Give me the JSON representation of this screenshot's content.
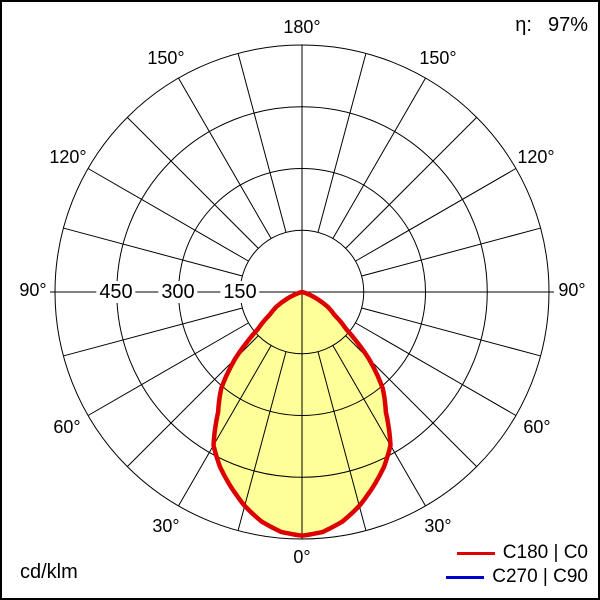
{
  "header": {
    "eta_label": "η:",
    "eta_value": "97%"
  },
  "unit_label": "cd/klm",
  "legend": {
    "items": [
      {
        "label": "C180 | C0",
        "color": "#dd0000"
      },
      {
        "label": "C270 | C90",
        "color": "#0000cc"
      }
    ]
  },
  "polar": {
    "angle_labels": {
      "t180": "180°",
      "l150": "150°",
      "r150": "150°",
      "l120": "120°",
      "r120": "120°",
      "l90": "90°",
      "r90": "90°",
      "l60": "60°",
      "r60": "60°",
      "l30": "30°",
      "r30": "30°",
      "b0": "0°"
    },
    "ring_labels": {
      "r1": "150",
      "r2": "300",
      "r3": "450"
    }
  },
  "chart_data": {
    "type": "line",
    "subtype": "polar-luminous-intensity-distribution",
    "title": "Luminous intensity distribution curve",
    "unit": "cd/klm",
    "efficiency_percent": 97,
    "angle_label_step_deg": 30,
    "grid_angle_step_deg": 15,
    "angle_labels": [
      "0°",
      "30°",
      "60°",
      "90°",
      "120°",
      "150°",
      "180°"
    ],
    "radial_ticks": [
      150,
      300,
      450,
      600
    ],
    "radial_tick_labels": [
      "150",
      "300",
      "450"
    ],
    "rmax": 600,
    "symmetric_about_nadir": true,
    "angles_deg": [
      0,
      5,
      10,
      15,
      20,
      25,
      30,
      35,
      40,
      45,
      50,
      55,
      60,
      65,
      70,
      75,
      80,
      85,
      90
    ],
    "series": [
      {
        "name": "C180 | C0",
        "color": "#dd0000",
        "values": [
          592,
          585,
          566,
          538,
          504,
          470,
          430,
          355,
          305,
          230,
          140,
          95,
          72,
          42,
          18,
          5,
          0,
          0,
          0
        ]
      },
      {
        "name": "C270 | C90",
        "color": "#0000cc",
        "values": [
          592,
          585,
          566,
          538,
          504,
          470,
          430,
          355,
          305,
          230,
          140,
          95,
          72,
          42,
          18,
          5,
          0,
          0,
          0
        ]
      }
    ],
    "fill_color": "#ffff99",
    "note": "C270|C90 curve coincides with C180|C0 and is hidden beneath it"
  }
}
